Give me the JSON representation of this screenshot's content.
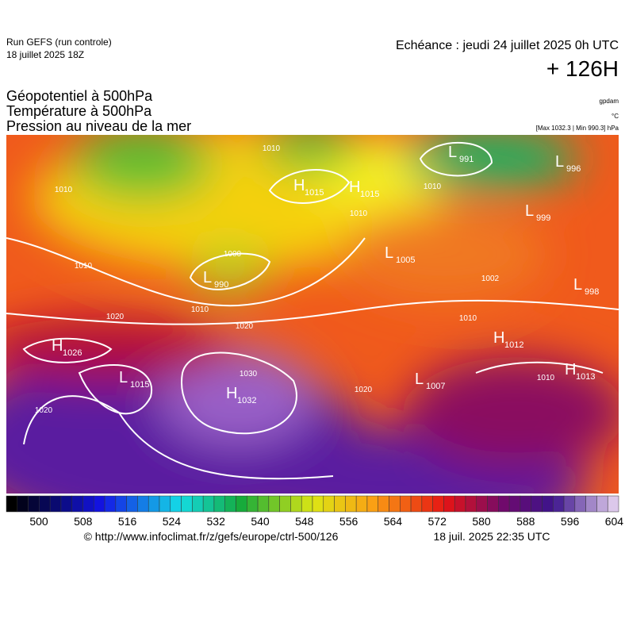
{
  "header": {
    "run": "Run GEFS (run controle)",
    "run_date": "18 juillet 2025 18Z",
    "echeance": "Echéance : jeudi 24 juillet 2025 0h UTC",
    "lead": "+ 126H"
  },
  "titles": [
    "Géopotentiel à 500hPa",
    "Température à 500hPa",
    "Pression au niveau de la mer"
  ],
  "units": {
    "geopotential": "gpdam",
    "temperature": "°C",
    "pressure": "[Max 1032.3 | Min 990.3] hPa"
  },
  "centers": [
    {
      "letter": "L",
      "value": "991"
    },
    {
      "letter": "L",
      "value": "996"
    },
    {
      "letter": "H",
      "value": "1015"
    },
    {
      "letter": "H",
      "value": "1015"
    },
    {
      "letter": "L",
      "value": "999"
    },
    {
      "letter": "L",
      "value": "1005"
    },
    {
      "letter": "L",
      "value": "990"
    },
    {
      "letter": "L",
      "value": "998"
    },
    {
      "letter": "H",
      "value": "1026"
    },
    {
      "letter": "H",
      "value": "1012"
    },
    {
      "letter": "L",
      "value": "1015"
    },
    {
      "letter": "H",
      "value": "1013"
    },
    {
      "letter": "L",
      "value": "1007"
    },
    {
      "letter": "H",
      "value": "1032"
    }
  ],
  "isobar_labels": [
    "1010",
    "1010",
    "1010",
    "1010",
    "1000",
    "1010",
    "1010",
    "1020",
    "1020",
    "1030",
    "1020",
    "1020",
    "1010",
    "1002",
    "1010"
  ],
  "colorbar": {
    "ticks": [
      500,
      508,
      516,
      524,
      532,
      540,
      548,
      556,
      564,
      572,
      580,
      588,
      596,
      604
    ]
  },
  "footer": {
    "url": "© http://www.infoclimat.fr/z/gefs/europe/ctrl-500/126",
    "generated": "18 juil. 2025 22:35 UTC"
  }
}
